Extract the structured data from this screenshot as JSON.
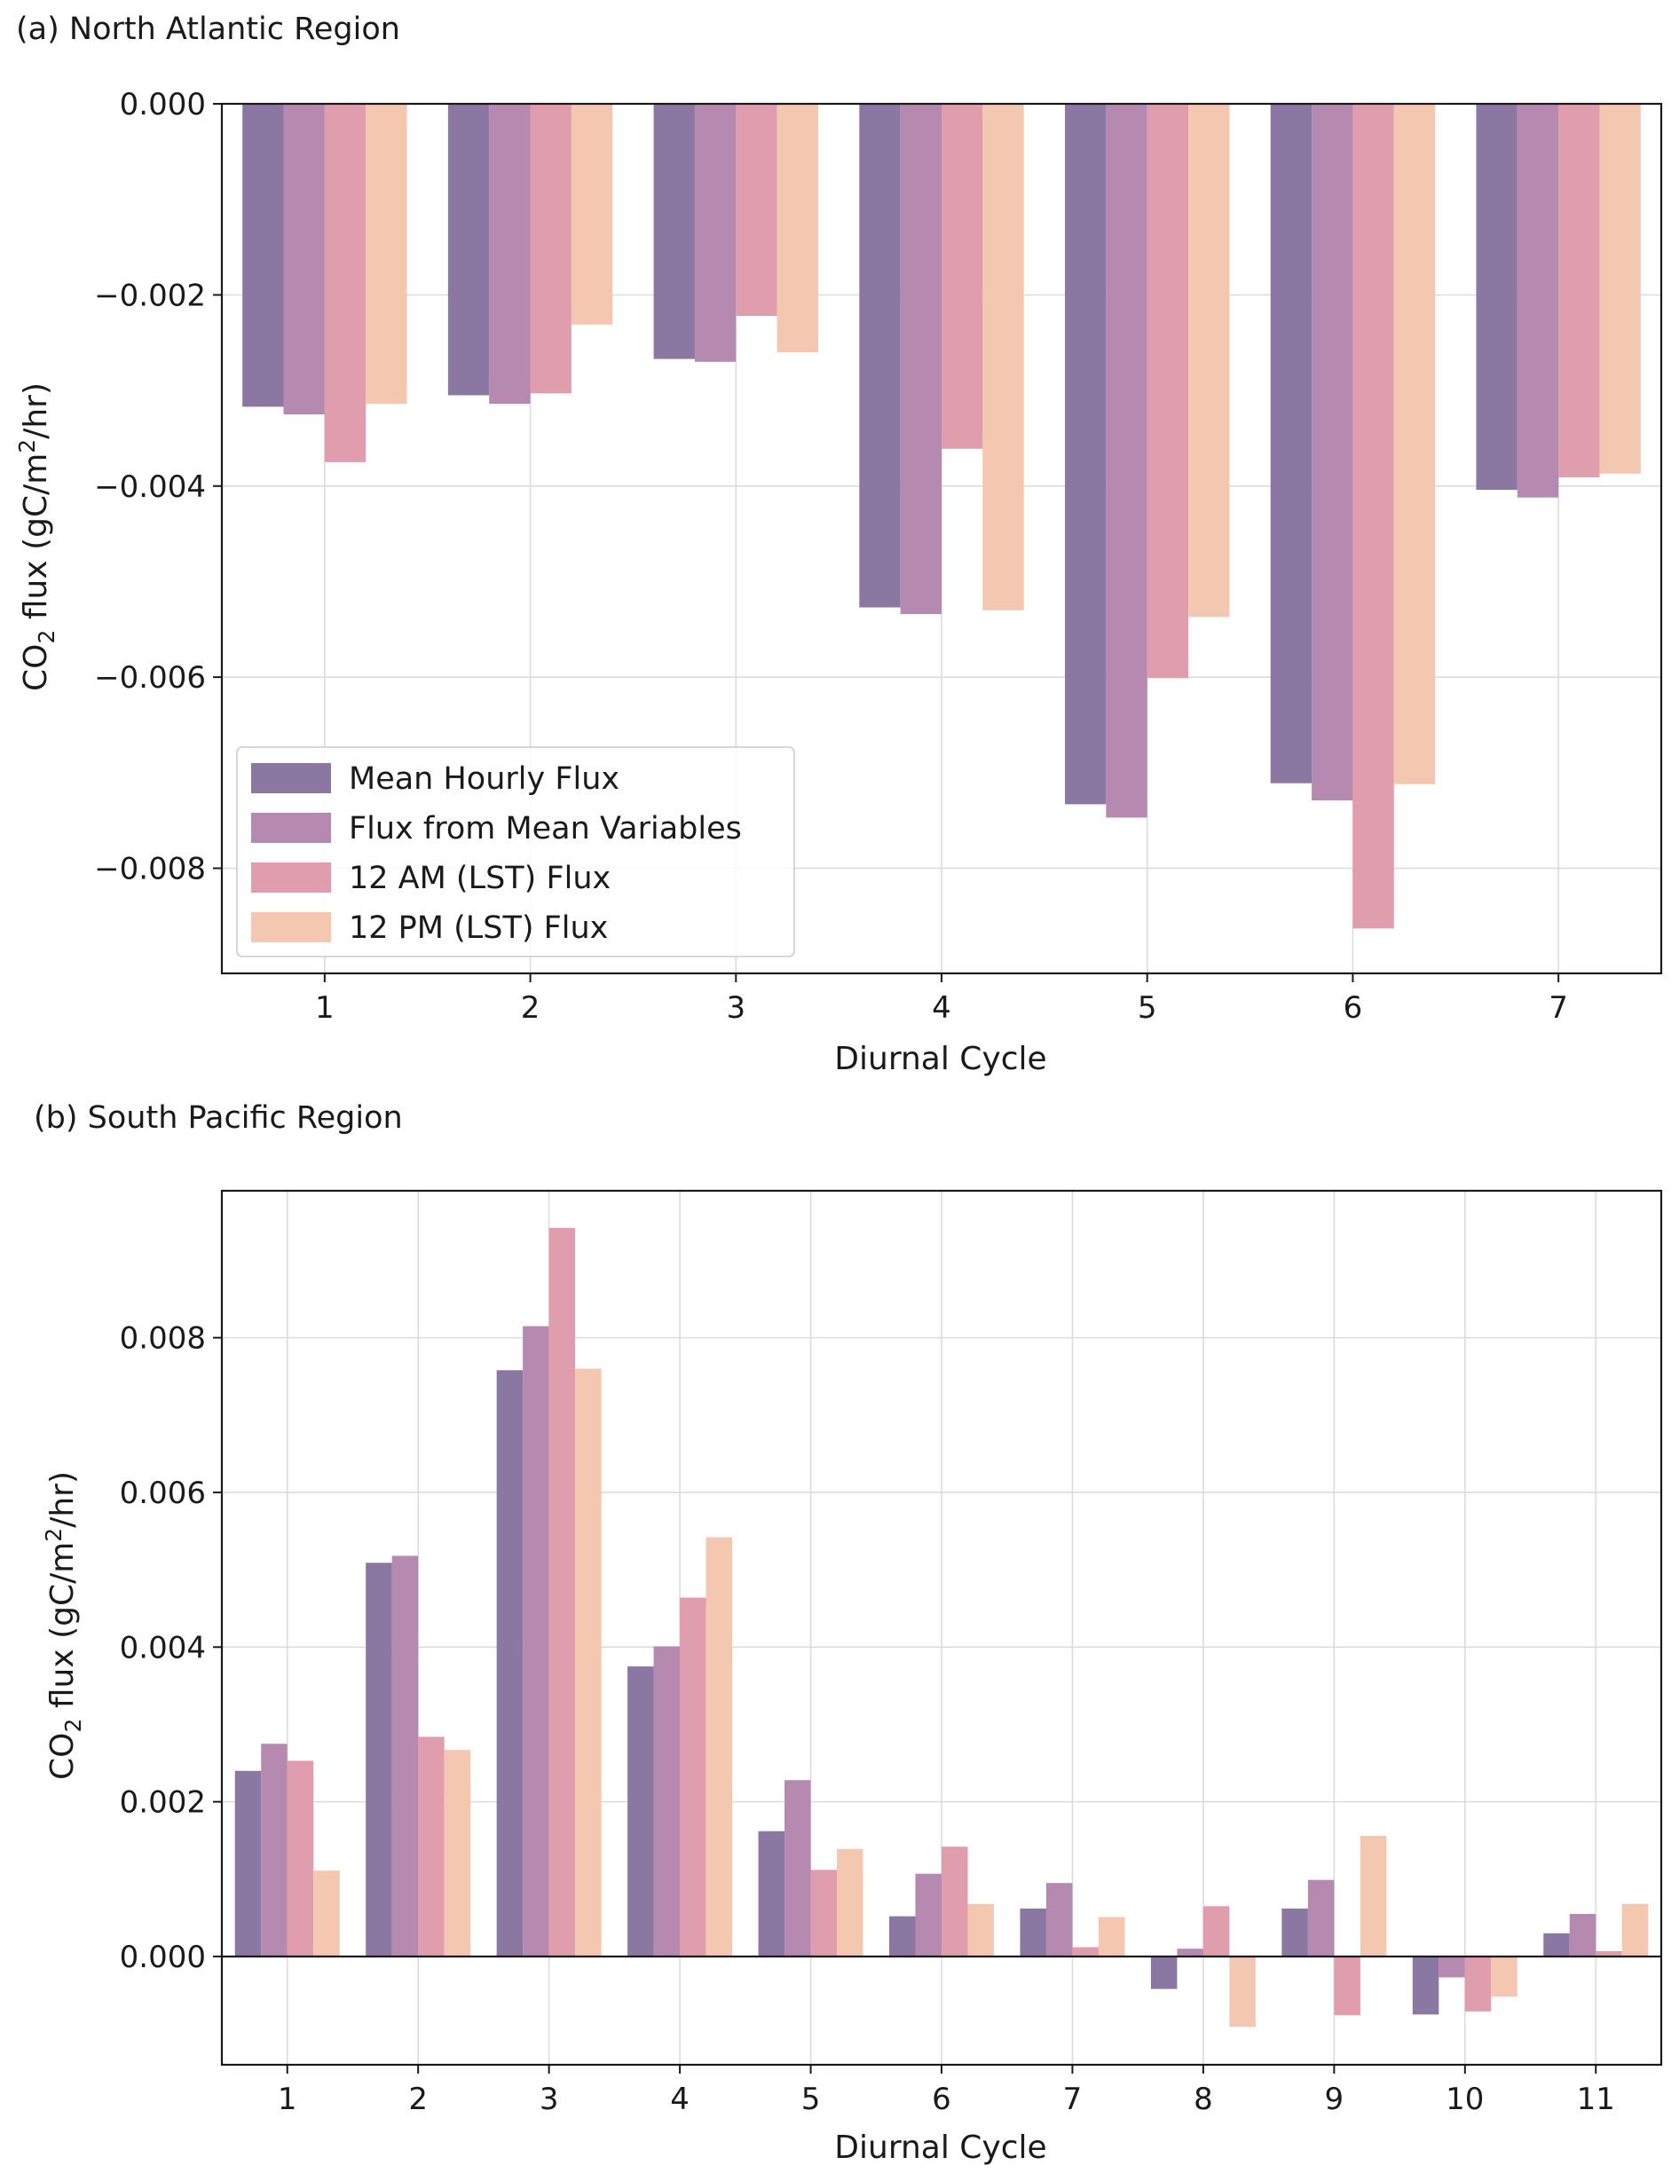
{
  "chart_data": [
    {
      "type": "bar",
      "title": "(a) North Atlantic Region",
      "xlabel": "Diurnal Cycle",
      "ylabel_main": "CO",
      "ylabel_sub": "2",
      "ylabel_rest": " flux (gC/m",
      "ylabel_sup": "2",
      "ylabel_end": "/hr)",
      "categories": [
        "1",
        "2",
        "3",
        "4",
        "5",
        "6",
        "7"
      ],
      "ylim": [
        -0.0091,
        0.0
      ],
      "yticks": [
        0.0,
        -0.002,
        -0.004,
        -0.006,
        -0.008
      ],
      "ytick_labels": [
        "0.000",
        "−0.002",
        "−0.004",
        "−0.006",
        "−0.008"
      ],
      "grid": true,
      "legend_position": "lower-left",
      "series": [
        {
          "name": "Mean Hourly Flux",
          "color": "#8a78a3",
          "values": [
            -0.00317,
            -0.00305,
            -0.00267,
            -0.00527,
            -0.00733,
            -0.00711,
            -0.00404
          ]
        },
        {
          "name": "Flux from Mean Variables",
          "color": "#b589b0",
          "values": [
            -0.00325,
            -0.00314,
            -0.0027,
            -0.00534,
            -0.00747,
            -0.00729,
            -0.00412
          ]
        },
        {
          "name": "12 AM (LST) Flux",
          "color": "#e09dad",
          "values": [
            -0.00375,
            -0.00303,
            -0.00222,
            -0.00361,
            -0.00601,
            -0.00863,
            -0.00391
          ]
        },
        {
          "name": "12 PM (LST) Flux",
          "color": "#f4c7b0",
          "values": [
            -0.00314,
            -0.00231,
            -0.0026,
            -0.0053,
            -0.00537,
            -0.00712,
            -0.00387
          ]
        }
      ]
    },
    {
      "type": "bar",
      "title": "(b) South Pacific Region",
      "xlabel": "Diurnal Cycle",
      "ylabel_main": "CO",
      "ylabel_sub": "2",
      "ylabel_rest": " flux (gC/m",
      "ylabel_sup": "2",
      "ylabel_end": "/hr)",
      "categories": [
        "1",
        "2",
        "3",
        "4",
        "5",
        "6",
        "7",
        "8",
        "9",
        "10",
        "11"
      ],
      "ylim": [
        -0.0014,
        0.0099
      ],
      "yticks": [
        0.0,
        0.002,
        0.004,
        0.006,
        0.008
      ],
      "ytick_labels": [
        "0.000",
        "0.002",
        "0.004",
        "0.006",
        "0.008"
      ],
      "grid": true,
      "legend_position": "none",
      "series": [
        {
          "name": "Mean Hourly Flux",
          "color": "#8a78a3",
          "values": [
            0.0024,
            0.00509,
            0.00758,
            0.00375,
            0.00162,
            0.00052,
            0.00062,
            -0.00042,
            0.00062,
            -0.00075,
            0.0003
          ]
        },
        {
          "name": "Flux from Mean Variables",
          "color": "#b589b0",
          "values": [
            0.00275,
            0.00518,
            0.00815,
            0.00401,
            0.00228,
            0.00107,
            0.00095,
            0.0001,
            0.00099,
            -0.00027,
            0.00055
          ]
        },
        {
          "name": "12 AM (LST) Flux",
          "color": "#e09dad",
          "values": [
            0.00253,
            0.00284,
            0.00942,
            0.00464,
            0.00112,
            0.00142,
            0.00012,
            0.00065,
            -0.00076,
            -0.00071,
            7e-05
          ]
        },
        {
          "name": "12 PM (LST) Flux",
          "color": "#f4c7b0",
          "values": [
            0.00111,
            0.00267,
            0.0076,
            0.00542,
            0.00139,
            0.00068,
            0.00051,
            -0.00091,
            0.00156,
            -0.00052,
            0.00068
          ]
        }
      ]
    }
  ]
}
